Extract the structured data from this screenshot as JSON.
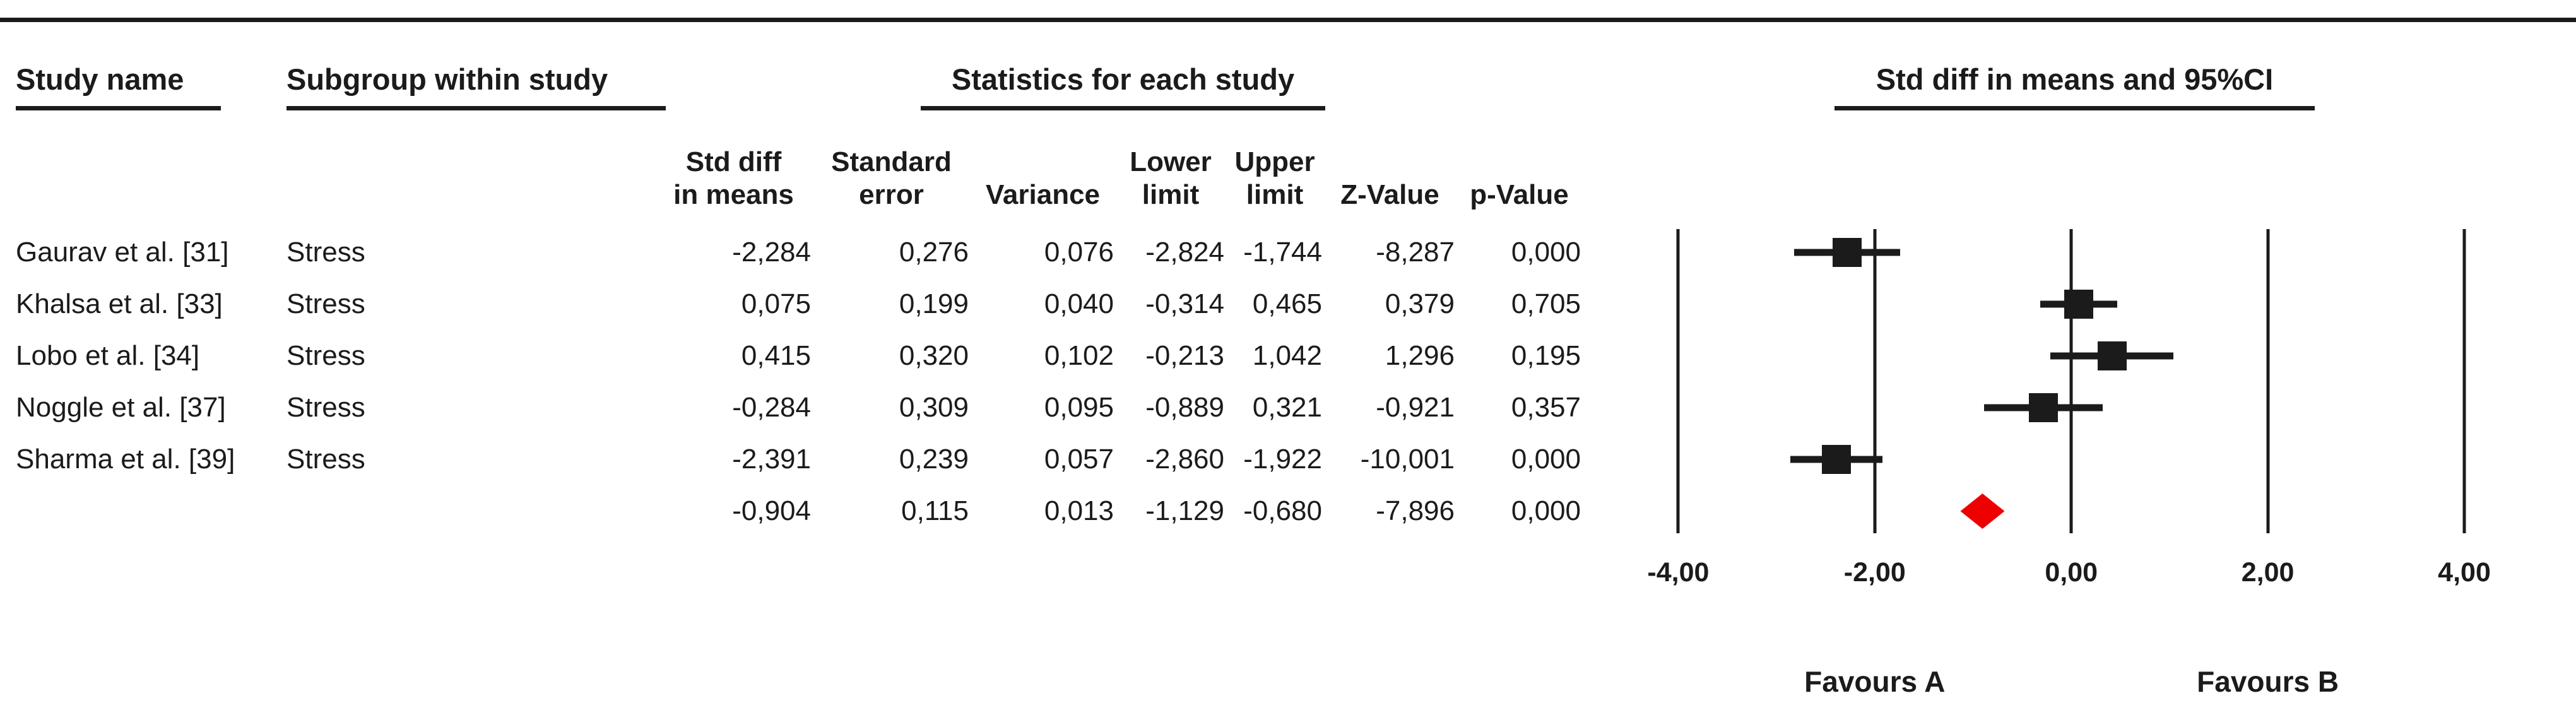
{
  "header": {
    "study_name": "Study name",
    "subgroup": "Subgroup within study",
    "statistics": "Statistics for each study",
    "ci": "Std diff in means and 95%CI"
  },
  "columns": [
    {
      "l1": "Std diff",
      "l2": "in means"
    },
    {
      "l1": "Standard",
      "l2": "error"
    },
    {
      "l1": "",
      "l2": "Variance"
    },
    {
      "l1": "Lower",
      "l2": "limit"
    },
    {
      "l1": "Upper",
      "l2": "limit"
    },
    {
      "l1": "",
      "l2": "Z-Value"
    },
    {
      "l1": "",
      "l2": "p-Value"
    }
  ],
  "rows": [
    {
      "study": "Gaurav et al. [31]",
      "subgroup": "Stress",
      "cells": [
        "-2,284",
        "0,276",
        "0,076",
        "-2,824",
        "-1,744",
        "-8,287",
        "0,000"
      ]
    },
    {
      "study": "Khalsa et al. [33]",
      "subgroup": "Stress",
      "cells": [
        "0,075",
        "0,199",
        "0,040",
        "-0,314",
        "0,465",
        "0,379",
        "0,705"
      ]
    },
    {
      "study": "Lobo et al. [34]",
      "subgroup": "Stress",
      "cells": [
        "0,415",
        "0,320",
        "0,102",
        "-0,213",
        "1,042",
        "1,296",
        "0,195"
      ]
    },
    {
      "study": "Noggle et al. [37]",
      "subgroup": "Stress",
      "cells": [
        "-0,284",
        "0,309",
        "0,095",
        "-0,889",
        "0,321",
        "-0,921",
        "0,357"
      ]
    },
    {
      "study": "Sharma et al. [39]",
      "subgroup": "Stress",
      "cells": [
        "-2,391",
        "0,239",
        "0,057",
        "-2,860",
        "-1,922",
        "-10,001",
        "0,000"
      ]
    },
    {
      "study": "",
      "subgroup": "",
      "cells": [
        "-0,904",
        "0,115",
        "0,013",
        "-1,129",
        "-0,680",
        "-7,896",
        "0,000"
      ]
    }
  ],
  "chart_data": {
    "type": "forest",
    "title": "Std diff in means and 95%CI",
    "axis": {
      "min": -4.51,
      "max": 4.61,
      "ticks": [
        -4,
        -2,
        0,
        2,
        4
      ],
      "tick_labels": [
        "-4,00",
        "-2,00",
        "0,00",
        "2,00",
        "4,00"
      ]
    },
    "studies": [
      {
        "name": "Gaurav et al. [31]",
        "mean": -2.284,
        "lower": -2.824,
        "upper": -1.744
      },
      {
        "name": "Khalsa et al. [33]",
        "mean": 0.075,
        "lower": -0.314,
        "upper": 0.465
      },
      {
        "name": "Lobo et al. [34]",
        "mean": 0.415,
        "lower": -0.213,
        "upper": 1.042
      },
      {
        "name": "Noggle et al. [37]",
        "mean": -0.284,
        "lower": -0.889,
        "upper": 0.321
      },
      {
        "name": "Sharma et al. [39]",
        "mean": -2.391,
        "lower": -2.86,
        "upper": -1.922
      }
    ],
    "overall": {
      "mean": -0.904,
      "lower": -1.129,
      "upper": -0.68
    },
    "footer": {
      "left": "Favours A",
      "right": "Favours B"
    },
    "colors": {
      "marker": "#1b1b1b",
      "diamond": "#ee0000"
    }
  }
}
